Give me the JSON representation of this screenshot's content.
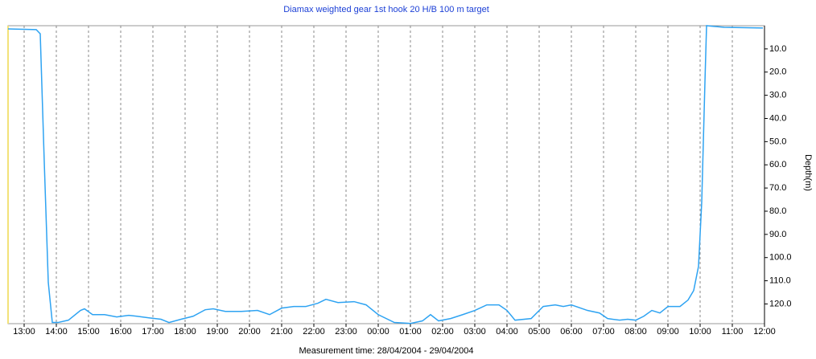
{
  "chart_data": {
    "type": "line",
    "title": "Diamax weighted gear 1st hook 20 H/B 100 m target",
    "x_label": "Measurement time: 28/04/2004 - 29/04/2004",
    "y_label": "Depth(m)",
    "y_inverted": true,
    "grid": true,
    "xlim": [
      12.5,
      36
    ],
    "ylim": [
      0,
      128.5
    ],
    "xticks": [
      {
        "value": 13,
        "label": "13:00"
      },
      {
        "value": 14,
        "label": "14:00"
      },
      {
        "value": 15,
        "label": "15:00"
      },
      {
        "value": 16,
        "label": "16:00"
      },
      {
        "value": 17,
        "label": "17:00"
      },
      {
        "value": 18,
        "label": "18:00"
      },
      {
        "value": 19,
        "label": "19:00"
      },
      {
        "value": 20,
        "label": "20:00"
      },
      {
        "value": 21,
        "label": "21:00"
      },
      {
        "value": 22,
        "label": "22:00"
      },
      {
        "value": 23,
        "label": "23:00"
      },
      {
        "value": 24,
        "label": "00:00"
      },
      {
        "value": 25,
        "label": "01:00"
      },
      {
        "value": 26,
        "label": "02:00"
      },
      {
        "value": 27,
        "label": "03:00"
      },
      {
        "value": 28,
        "label": "04:00"
      },
      {
        "value": 29,
        "label": "05:00"
      },
      {
        "value": 30,
        "label": "06:00"
      },
      {
        "value": 31,
        "label": "07:00"
      },
      {
        "value": 32,
        "label": "08:00"
      },
      {
        "value": 33,
        "label": "09:00"
      },
      {
        "value": 34,
        "label": "10:00"
      },
      {
        "value": 35,
        "label": "11:00"
      },
      {
        "value": 36,
        "label": "12:00"
      }
    ],
    "yticks": [
      {
        "value": 10,
        "label": "10.0"
      },
      {
        "value": 20,
        "label": "20.0"
      },
      {
        "value": 30,
        "label": "30.0"
      },
      {
        "value": 40,
        "label": "40.0"
      },
      {
        "value": 50,
        "label": "50.0"
      },
      {
        "value": 60,
        "label": "60.0"
      },
      {
        "value": 70,
        "label": "70.0"
      },
      {
        "value": 80,
        "label": "80.0"
      },
      {
        "value": 90,
        "label": "90.0"
      },
      {
        "value": 100,
        "label": "100.0"
      },
      {
        "value": 110,
        "label": "110.0"
      },
      {
        "value": 120,
        "label": "120.0"
      }
    ],
    "series": [
      {
        "name": "Depth",
        "color": "#2ea3f2",
        "x": [
          12.5,
          13.375,
          13.5,
          13.625,
          13.75,
          13.875,
          14.05,
          14.375,
          14.75,
          14.875,
          15.125,
          15.5,
          15.875,
          16.25,
          16.5,
          16.875,
          17.25,
          17.5,
          17.875,
          18.25,
          18.625,
          18.875,
          19.25,
          19.75,
          20.25,
          20.625,
          21,
          21.375,
          21.75,
          22.125,
          22.375,
          22.75,
          23.25,
          23.625,
          24,
          24.5,
          25,
          25.375,
          25.625,
          25.875,
          26.25,
          26.625,
          27,
          27.375,
          27.75,
          28,
          28.25,
          28.75,
          29.125,
          29.5,
          29.75,
          30,
          30.5,
          30.875,
          31.125,
          31.5,
          31.75,
          32,
          32.25,
          32.5,
          32.75,
          33,
          33.375,
          33.625,
          33.8,
          33.95,
          34.05,
          34.15,
          34.2,
          34.75,
          35.95
        ],
        "values": [
          1.4,
          1.7,
          3.5,
          58.8,
          110.7,
          128,
          128,
          127,
          122.8,
          122.1,
          124.6,
          124.6,
          125.6,
          124.9,
          125.3,
          126,
          126.6,
          128,
          126.6,
          125.3,
          122.5,
          122.1,
          123.2,
          123.2,
          122.8,
          124.6,
          121.8,
          121.1,
          121.1,
          119.7,
          118,
          119.4,
          119,
          120.4,
          124.6,
          128,
          128.4,
          127.3,
          124.6,
          127.3,
          126.3,
          124.6,
          122.8,
          120.4,
          120.4,
          122.8,
          127,
          126.3,
          121.1,
          120.4,
          121.1,
          120.4,
          122.8,
          123.9,
          126.3,
          127,
          126.6,
          127,
          125.3,
          122.8,
          123.9,
          121.1,
          121.1,
          118.3,
          114.2,
          103.8,
          76.1,
          24.2,
          0,
          0.7,
          1
        ]
      }
    ]
  }
}
